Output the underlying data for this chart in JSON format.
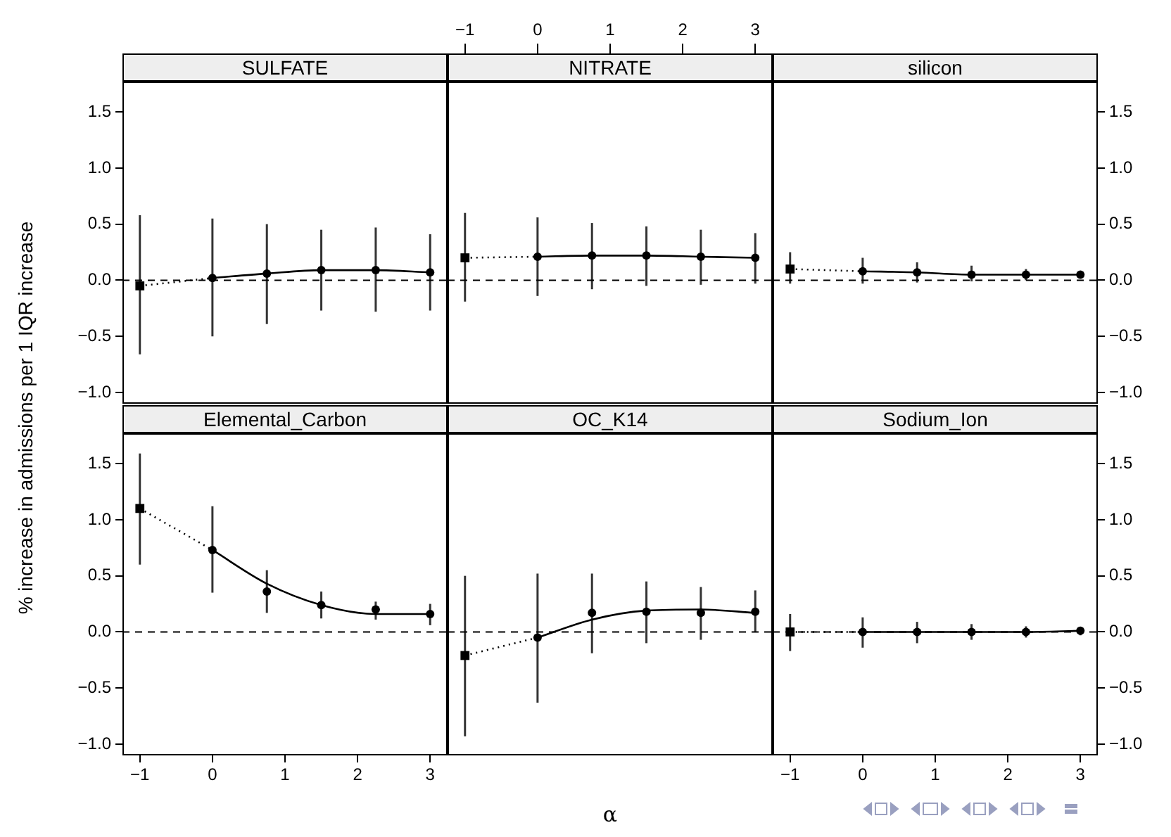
{
  "chart_data": [
    {
      "type": "scatter",
      "title": "SULFATE",
      "xlim": [
        -1.24,
        3.24
      ],
      "ylim": [
        -1.1,
        1.77
      ],
      "yticks": [
        {
          "value": -1,
          "label": "−1.0"
        },
        {
          "value": -0.5,
          "label": "−0.5"
        },
        {
          "value": 0,
          "label": "0.0"
        },
        {
          "value": 0.5,
          "label": "0.5"
        },
        {
          "value": 1,
          "label": "1.0"
        },
        {
          "value": 1.5,
          "label": "1.5"
        }
      ],
      "tick_labels": "y",
      "ylabel": "% increase in admissions per 1 IQR increase",
      "ref_lines": [
        {
          "axis": "y",
          "value": 0,
          "line_style": "dashed",
          "color": "#000000"
        }
      ],
      "series": [
        {
          "type": "line",
          "color": "#000000",
          "line_style": "dotted",
          "marker": "none",
          "x": [
            -1,
            0
          ],
          "values": [
            -0.05,
            0.02
          ]
        },
        {
          "type": "line",
          "color": "#000000",
          "line_style": "solid",
          "marker": "none",
          "x": [
            0,
            0.75,
            1.5,
            2.25,
            3
          ],
          "values": [
            0.02,
            0.06,
            0.09,
            0.09,
            0.07
          ]
        },
        {
          "type": "scatter",
          "color": "#000000",
          "marker": "square",
          "x": [
            -1
          ],
          "values": [
            -0.05
          ],
          "errors": [
            [
              -0.66,
              0.58
            ]
          ]
        },
        {
          "type": "scatter",
          "color": "#000000",
          "marker": "circle",
          "x": [
            0,
            0.75,
            1.5,
            2.25,
            3
          ],
          "values": [
            0.02,
            0.06,
            0.09,
            0.09,
            0.07
          ],
          "errors": [
            [
              -0.5,
              0.55
            ],
            [
              -0.39,
              0.5
            ],
            [
              -0.27,
              0.45
            ],
            [
              -0.28,
              0.47
            ],
            [
              -0.27,
              0.41
            ]
          ]
        }
      ]
    },
    {
      "type": "scatter",
      "title": "NITRATE",
      "xlim": [
        -1.24,
        3.24
      ],
      "x2lim": [
        -1.24,
        3.24
      ],
      "x2ticks": [
        {
          "value": -1,
          "label": "−1"
        },
        0,
        1,
        2,
        3
      ],
      "ylim": [
        -1.1,
        1.77
      ],
      "tick_labels": false,
      "ref_lines": [
        {
          "axis": "y",
          "value": 0,
          "line_style": "dashed",
          "color": "#000000"
        }
      ],
      "series": [
        {
          "type": "line",
          "color": "#000000",
          "line_style": "dotted",
          "marker": "none",
          "x": [
            -1,
            0
          ],
          "values": [
            0.2,
            0.21
          ]
        },
        {
          "type": "line",
          "color": "#000000",
          "line_style": "solid",
          "marker": "none",
          "x": [
            0,
            0.75,
            1.5,
            2.25,
            3
          ],
          "values": [
            0.21,
            0.22,
            0.22,
            0.21,
            0.2
          ]
        },
        {
          "type": "scatter",
          "color": "#000000",
          "marker": "square",
          "x": [
            -1
          ],
          "values": [
            0.2
          ],
          "errors": [
            [
              -0.19,
              0.6
            ]
          ]
        },
        {
          "type": "scatter",
          "color": "#000000",
          "marker": "circle",
          "x": [
            0,
            0.75,
            1.5,
            2.25,
            3
          ],
          "values": [
            0.21,
            0.22,
            0.22,
            0.21,
            0.2
          ],
          "errors": [
            [
              -0.14,
              0.56
            ],
            [
              -0.08,
              0.51
            ],
            [
              -0.05,
              0.48
            ],
            [
              -0.04,
              0.45
            ],
            [
              -0.03,
              0.42
            ]
          ]
        }
      ]
    },
    {
      "type": "scatter",
      "title": "silicon",
      "xlim": [
        -1.24,
        3.24
      ],
      "ylim": [
        -1.1,
        1.77
      ],
      "yticks": [
        {
          "value": -1,
          "label": "−1.0"
        },
        {
          "value": -0.5,
          "label": "−0.5"
        },
        {
          "value": 0,
          "label": "0.0"
        },
        {
          "value": 0.5,
          "label": "0.5"
        },
        {
          "value": 1,
          "label": "1.0"
        },
        {
          "value": 1.5,
          "label": "1.5"
        }
      ],
      "tick_labels": "y",
      "ref_lines": [
        {
          "axis": "y",
          "value": 0,
          "line_style": "dashed",
          "color": "#000000"
        }
      ],
      "series": [
        {
          "type": "line",
          "color": "#000000",
          "line_style": "dotted",
          "marker": "none",
          "x": [
            -1,
            0
          ],
          "values": [
            0.1,
            0.08
          ]
        },
        {
          "type": "line",
          "color": "#000000",
          "line_style": "solid",
          "marker": "none",
          "x": [
            0,
            0.75,
            1.5,
            2.25,
            3
          ],
          "values": [
            0.08,
            0.07,
            0.05,
            0.05,
            0.05
          ]
        },
        {
          "type": "scatter",
          "color": "#000000",
          "marker": "square",
          "x": [
            -1
          ],
          "values": [
            0.1
          ],
          "errors": [
            [
              -0.03,
              0.25
            ]
          ]
        },
        {
          "type": "scatter",
          "color": "#000000",
          "marker": "circle",
          "x": [
            0,
            0.75,
            1.5,
            2.25,
            3
          ],
          "values": [
            0.08,
            0.07,
            0.05,
            0.05,
            0.05
          ],
          "errors": [
            [
              -0.03,
              0.2
            ],
            [
              -0.02,
              0.16
            ],
            [
              -0.01,
              0.13
            ],
            [
              0,
              0.1
            ],
            [
              0.02,
              0.08
            ]
          ]
        }
      ]
    },
    {
      "type": "scatter",
      "title": "Elemental_Carbon",
      "xlim": [
        -1.24,
        3.24
      ],
      "xticks": [
        {
          "value": -1,
          "label": "−1"
        },
        0,
        1,
        2,
        3
      ],
      "ylim": [
        -1.1,
        1.77
      ],
      "yticks": [
        {
          "value": -1,
          "label": "−1.0"
        },
        {
          "value": -0.5,
          "label": "−0.5"
        },
        {
          "value": 0,
          "label": "0.0"
        },
        {
          "value": 0.5,
          "label": "0.5"
        },
        {
          "value": 1,
          "label": "1.0"
        },
        {
          "value": 1.5,
          "label": "1.5"
        }
      ],
      "ref_lines": [
        {
          "axis": "y",
          "value": 0,
          "line_style": "dashed",
          "color": "#000000"
        }
      ],
      "series": [
        {
          "type": "line",
          "color": "#000000",
          "line_style": "dotted",
          "marker": "none",
          "x": [
            -1,
            0
          ],
          "values": [
            1.1,
            0.73
          ]
        },
        {
          "type": "line",
          "color": "#000000",
          "line_style": "solid",
          "marker": "none",
          "x": [
            0,
            0.75,
            1.5,
            2.25,
            3
          ],
          "values": [
            0.73,
            0.43,
            0.24,
            0.16,
            0.16
          ]
        },
        {
          "type": "scatter",
          "color": "#000000",
          "marker": "square",
          "x": [
            -1
          ],
          "values": [
            1.1
          ],
          "errors": [
            [
              0.6,
              1.59
            ]
          ]
        },
        {
          "type": "scatter",
          "color": "#000000",
          "marker": "circle",
          "x": [
            0,
            0.75,
            1.5,
            2.25,
            3
          ],
          "values": [
            0.73,
            0.36,
            0.24,
            0.2,
            0.16
          ],
          "errors": [
            [
              0.35,
              1.12
            ],
            [
              0.17,
              0.55
            ],
            [
              0.12,
              0.36
            ],
            [
              0.11,
              0.27
            ],
            [
              0.06,
              0.25
            ]
          ]
        }
      ]
    },
    {
      "type": "scatter",
      "title": "OC_K14",
      "xlabel": "α",
      "xlim": [
        -1.24,
        3.24
      ],
      "ylim": [
        -1.1,
        1.77
      ],
      "tick_labels": false,
      "ref_lines": [
        {
          "axis": "y",
          "value": 0,
          "line_style": "dashed",
          "color": "#000000"
        }
      ],
      "series": [
        {
          "type": "line",
          "color": "#000000",
          "line_style": "dotted",
          "marker": "none",
          "x": [
            -1,
            0
          ],
          "values": [
            -0.21,
            -0.05
          ]
        },
        {
          "type": "line",
          "color": "#000000",
          "line_style": "solid",
          "marker": "none",
          "x": [
            0,
            0.75,
            1.5,
            2.25,
            3
          ],
          "values": [
            -0.05,
            0.11,
            0.19,
            0.2,
            0.17
          ]
        },
        {
          "type": "scatter",
          "color": "#000000",
          "marker": "square",
          "x": [
            -1
          ],
          "values": [
            -0.21
          ],
          "errors": [
            [
              -0.93,
              0.5
            ]
          ]
        },
        {
          "type": "scatter",
          "color": "#000000",
          "marker": "circle",
          "x": [
            0,
            0.75,
            1.5,
            2.25,
            3
          ],
          "values": [
            -0.05,
            0.17,
            0.18,
            0.17,
            0.18
          ],
          "errors": [
            [
              -0.63,
              0.52
            ],
            [
              -0.19,
              0.52
            ],
            [
              -0.1,
              0.45
            ],
            [
              -0.07,
              0.4
            ],
            [
              0,
              0.37
            ]
          ]
        }
      ]
    },
    {
      "type": "scatter",
      "title": "Sodium_Ion",
      "xlim": [
        -1.24,
        3.24
      ],
      "xticks": [
        {
          "value": -1,
          "label": "−1"
        },
        0,
        1,
        2,
        3
      ],
      "ylim": [
        -1.1,
        1.77
      ],
      "yticks": [
        {
          "value": -1,
          "label": "−1.0"
        },
        {
          "value": -0.5,
          "label": "−0.5"
        },
        {
          "value": 0,
          "label": "0.0"
        },
        {
          "value": 0.5,
          "label": "0.5"
        },
        {
          "value": 1,
          "label": "1.0"
        },
        {
          "value": 1.5,
          "label": "1.5"
        }
      ],
      "ref_lines": [
        {
          "axis": "y",
          "value": 0,
          "line_style": "dashed",
          "color": "#000000"
        }
      ],
      "series": [
        {
          "type": "line",
          "color": "#000000",
          "line_style": "dotted",
          "marker": "none",
          "x": [
            -1,
            0
          ],
          "values": [
            0,
            0
          ]
        },
        {
          "type": "line",
          "color": "#000000",
          "line_style": "solid",
          "marker": "none",
          "x": [
            0,
            0.75,
            1.5,
            2.25,
            3
          ],
          "values": [
            0,
            0,
            0,
            0,
            0.01
          ]
        },
        {
          "type": "scatter",
          "color": "#000000",
          "marker": "square",
          "x": [
            -1
          ],
          "values": [
            0
          ],
          "errors": [
            [
              -0.17,
              0.16
            ]
          ]
        },
        {
          "type": "scatter",
          "color": "#000000",
          "marker": "circle",
          "x": [
            0,
            0.75,
            1.5,
            2.25,
            3
          ],
          "values": [
            0,
            0,
            0,
            0,
            0.01
          ],
          "errors": [
            [
              -0.14,
              0.13
            ],
            [
              -0.1,
              0.09
            ],
            [
              -0.07,
              0.07
            ],
            [
              -0.05,
              0.05
            ],
            [
              -0.03,
              0.04
            ]
          ]
        }
      ]
    }
  ]
}
